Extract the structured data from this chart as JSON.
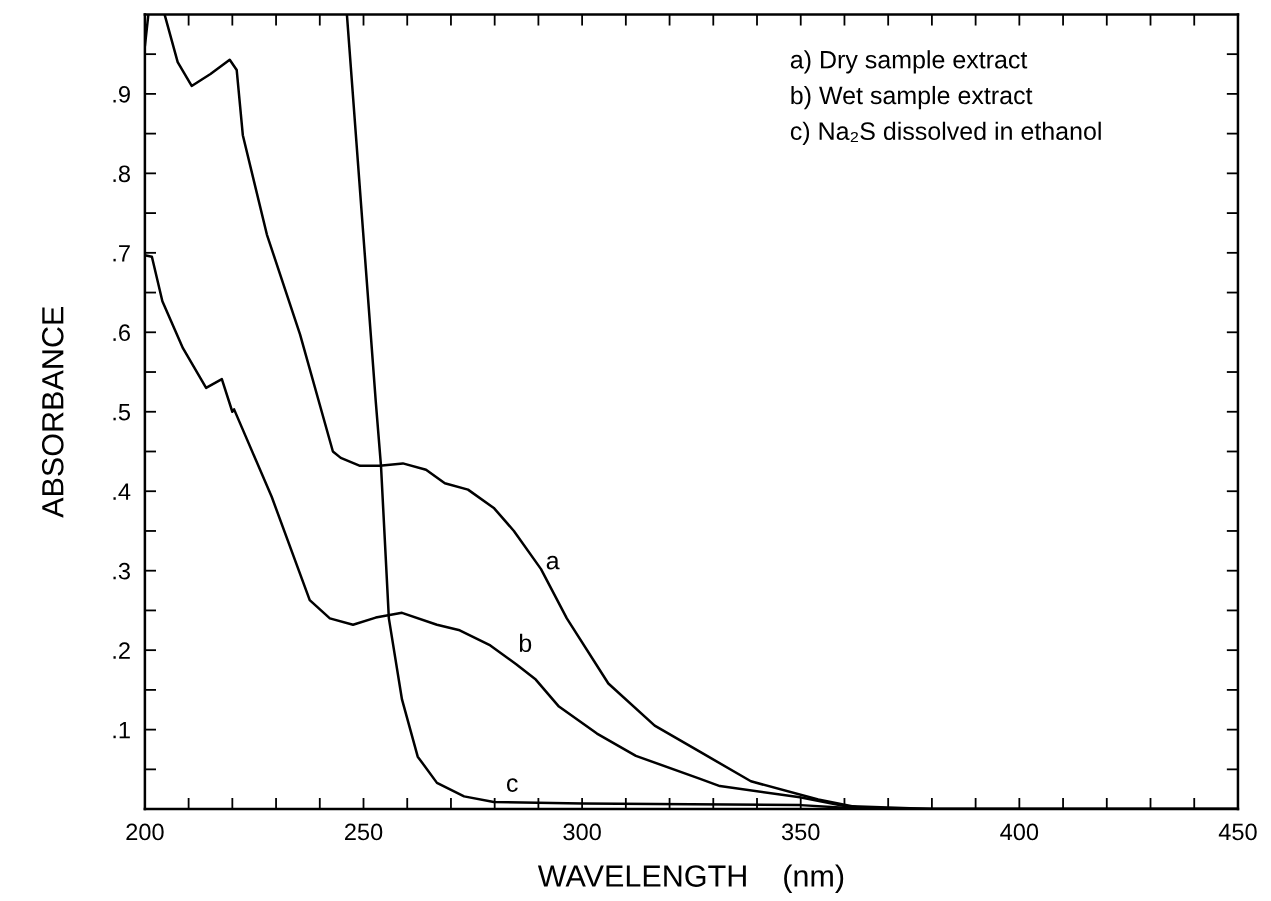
{
  "chart_data": {
    "type": "line",
    "xlabel": "WAVELENGTH    (nm)",
    "ylabel": "ABSORBANCE",
    "xlim": [
      200,
      450
    ],
    "ylim": [
      0,
      1.0
    ],
    "xticks": [
      200,
      {
        "value": 210,
        "label": null
      },
      {
        "value": 220,
        "label": null
      },
      {
        "value": 230,
        "label": null
      },
      {
        "value": 240,
        "label": null
      },
      250,
      {
        "value": 260,
        "label": null
      },
      {
        "value": 270,
        "label": null
      },
      {
        "value": 280,
        "label": null
      },
      {
        "value": 290,
        "label": null
      },
      300,
      {
        "value": 310,
        "label": null
      },
      {
        "value": 320,
        "label": null
      },
      {
        "value": 330,
        "label": null
      },
      {
        "value": 340,
        "label": null
      },
      350,
      {
        "value": 360,
        "label": null
      },
      {
        "value": 370,
        "label": null
      },
      {
        "value": 380,
        "label": null
      },
      {
        "value": 390,
        "label": null
      },
      400,
      {
        "value": 410,
        "label": null
      },
      {
        "value": 420,
        "label": null
      },
      {
        "value": 430,
        "label": null
      },
      {
        "value": 440,
        "label": null
      },
      450
    ],
    "yticks": [
      {
        "value": 0.05,
        "label": null
      },
      {
        "value": 0.1,
        "label": ".1"
      },
      {
        "value": 0.15,
        "label": null
      },
      {
        "value": 0.2,
        "label": ".2"
      },
      {
        "value": 0.25,
        "label": null
      },
      {
        "value": 0.3,
        "label": ".3"
      },
      {
        "value": 0.35,
        "label": null
      },
      {
        "value": 0.4,
        "label": ".4"
      },
      {
        "value": 0.45,
        "label": null
      },
      {
        "value": 0.5,
        "label": ".5"
      },
      {
        "value": 0.55,
        "label": null
      },
      {
        "value": 0.6,
        "label": ".6"
      },
      {
        "value": 0.65,
        "label": null
      },
      {
        "value": 0.7,
        "label": ".7"
      },
      {
        "value": 0.75,
        "label": null
      },
      {
        "value": 0.8,
        "label": ".8"
      },
      {
        "value": 0.85,
        "label": null
      },
      {
        "value": 0.9,
        "label": ".9"
      },
      {
        "value": 0.95,
        "label": null
      }
    ],
    "grid": false,
    "legend": false,
    "marker": "none",
    "line_style": "solid",
    "series": [
      {
        "name": "a",
        "color": "#000000",
        "x": [
          200,
          200.8,
          202.5,
          204.5,
          207.5,
          210.7,
          215,
          219.4,
          221,
          222.4,
          227.9,
          235.5,
          243,
          244.8,
          249.2,
          253.7,
          259,
          264.3,
          268.6,
          273.9,
          279.8,
          284.4,
          290.6,
          296.5,
          306,
          316.6,
          327,
          338.6,
          354,
          364,
          380,
          450
        ],
        "values": [
          0.96,
          1.0,
          null,
          1.0,
          0.94,
          0.91,
          0.925,
          0.943,
          0.93,
          0.848,
          0.723,
          0.597,
          0.45,
          0.442,
          0.432,
          0.432,
          0.435,
          0.427,
          0.41,
          0.402,
          0.379,
          0.35,
          0.302,
          0.24,
          0.158,
          0.105,
          0.072,
          0.035,
          0.012,
          0.001,
          0,
          0
        ]
      },
      {
        "name": "b",
        "color": "#000000",
        "x": [
          200,
          201.6,
          204,
          208.7,
          214,
          217.6,
          220,
          220.4,
          229,
          237.7,
          242.3,
          247.6,
          252.8,
          258.8,
          266.8,
          272,
          279,
          285,
          289.4,
          294.7,
          303.4,
          312.3,
          327,
          331.5,
          349.8,
          360,
          380,
          450
        ],
        "values": [
          0.697,
          0.695,
          0.639,
          0.58,
          0.53,
          0.541,
          0.5,
          0.503,
          0.393,
          0.263,
          0.24,
          0.232,
          0.241,
          0.247,
          0.232,
          0.225,
          0.206,
          0.182,
          0.163,
          0.129,
          0.095,
          0.067,
          0.038,
          0.029,
          0.015,
          0.004,
          0,
          0
        ]
      },
      {
        "name": "c",
        "color": "#000000",
        "x": [
          246.2,
          252.8,
          254,
          255.8,
          258.8,
          262.4,
          266.8,
          273,
          279.8,
          300,
          350,
          365,
          450
        ],
        "values": [
          1.0,
          0.513,
          0.432,
          0.24,
          0.138,
          0.066,
          0.033,
          0.016,
          0.009,
          0.007,
          0.005,
          0,
          0
        ]
      }
    ],
    "annotations": [
      "a) Dry sample extract",
      "b) Wet sample extract",
      "c) Na₂S dissolved in ethanol"
    ]
  }
}
